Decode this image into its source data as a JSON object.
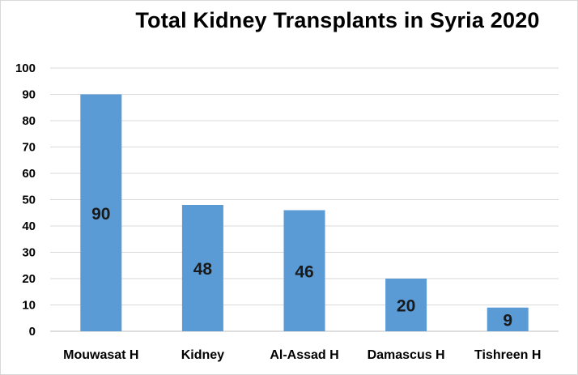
{
  "chart_data": {
    "type": "bar",
    "title": "Total Kidney Transplants in Syria 2020",
    "categories": [
      "Mouwasat H",
      "Kidney",
      "Al-Assad H",
      "Damascus H",
      "Tishreen H"
    ],
    "values": [
      90,
      48,
      46,
      20,
      9
    ],
    "data_labels": [
      "90",
      "48",
      "46",
      "20",
      "9"
    ],
    "xlabel": "",
    "ylabel": "",
    "ylim": [
      0,
      100
    ],
    "yticks": [
      "0",
      "10",
      "20",
      "30",
      "40",
      "50",
      "60",
      "70",
      "80",
      "90",
      "100"
    ],
    "grid": true,
    "legend": "none",
    "bar_color": "#5b9bd5",
    "grid_color": "#d9d9d9"
  }
}
